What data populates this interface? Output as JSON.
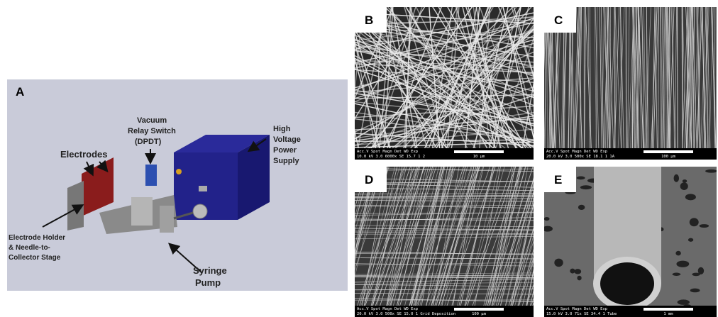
{
  "panels": [
    {
      "label": "A",
      "annotations": {
        "electrodes": "Electrodes",
        "switch": [
          "Vacuum",
          "Relay Switch",
          "(DPDT)"
        ],
        "supply": [
          "High",
          "Voltage",
          "Power",
          "Supply"
        ],
        "holder": [
          "Electrode Holder",
          "& Needle-to-",
          "Collector Stage"
        ],
        "pump": [
          "Syringe",
          "Pump"
        ]
      }
    },
    {
      "label": "B",
      "info": [
        "Acc.V Spot Magn   Det  WD  Exp",
        "10.0 kV 3.0  6000x  SE  15.7  1    2"
      ],
      "scale": "10 µm"
    },
    {
      "label": "C",
      "info": [
        "Acc.V Spot Magn   Det  WD  Exp",
        "20.0 kV 3.0  500x   SE  18.1  1   1A"
      ],
      "scale": "100 µm"
    },
    {
      "label": "D",
      "info": [
        "Acc.V Spot Magn   Det  WD  Exp",
        "20.0 kV 3.0  500x   SE  15.0  1   Grid Deposition"
      ],
      "scale": "100 µm"
    },
    {
      "label": "E",
      "info": [
        "Acc.V Spot Magn   Det  WD  Exp",
        "15.0 kV 3.0  71x    SE  34.4  1   Tube"
      ],
      "scale": "1 mm"
    }
  ]
}
